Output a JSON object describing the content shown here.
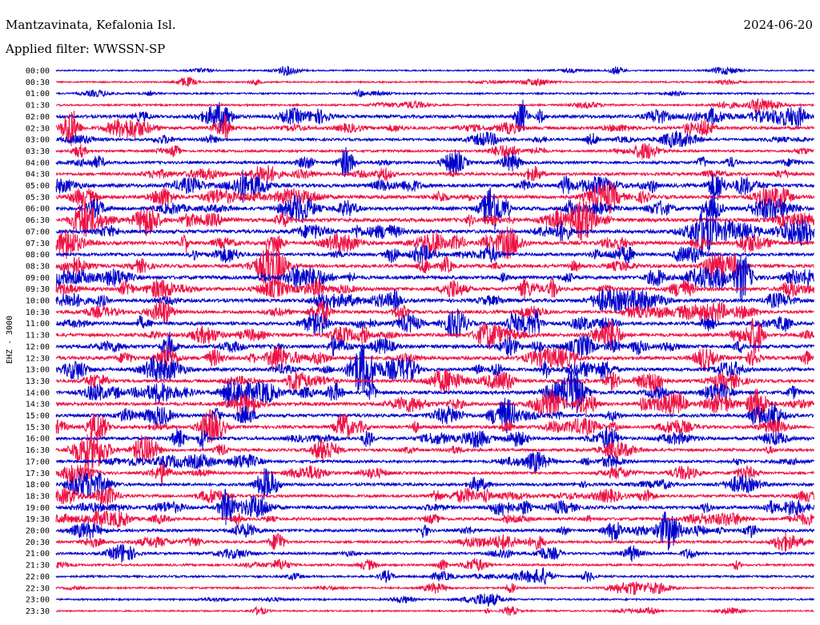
{
  "header": {
    "station": "Mantzavinata, Kefalonia Isl.",
    "date": "2024-06-20",
    "filter": "Applied filter: WWSSN-SP"
  },
  "chart_data": {
    "type": "line",
    "title": "Mantzavinata, Kefalonia Isl.",
    "ylabel": "EHZ - 3000",
    "xlabel": "",
    "trace_colors": [
      "#0000cc",
      "#ee1144"
    ],
    "rows": [
      "00:00",
      "00:30",
      "01:00",
      "01:30",
      "02:00",
      "02:30",
      "03:00",
      "03:30",
      "04:00",
      "04:30",
      "05:00",
      "05:30",
      "06:00",
      "06:30",
      "07:00",
      "07:30",
      "08:00",
      "08:30",
      "09:00",
      "09:30",
      "10:00",
      "10:30",
      "11:00",
      "11:30",
      "12:00",
      "12:30",
      "13:00",
      "13:30",
      "14:00",
      "14:30",
      "15:00",
      "15:30",
      "16:00",
      "16:30",
      "17:00",
      "17:30",
      "18:00",
      "18:30",
      "19:00",
      "19:30",
      "20:00",
      "20:30",
      "21:00",
      "21:30",
      "22:00",
      "22:30",
      "23:00",
      "23:30"
    ],
    "activity": [
      0.5,
      0.6,
      0.8,
      1.0,
      2.5,
      2.5,
      1.8,
      1.5,
      2.0,
      2.2,
      3.0,
      3.0,
      3.0,
      3.2,
      3.0,
      3.0,
      2.5,
      2.8,
      3.0,
      2.8,
      2.8,
      2.5,
      2.8,
      2.8,
      3.0,
      3.0,
      2.8,
      2.5,
      3.0,
      2.8,
      2.5,
      2.5,
      2.5,
      2.2,
      2.0,
      2.0,
      2.2,
      2.2,
      2.5,
      2.2,
      2.2,
      1.8,
      1.6,
      1.4,
      1.2,
      1.0,
      0.8,
      0.6
    ]
  }
}
